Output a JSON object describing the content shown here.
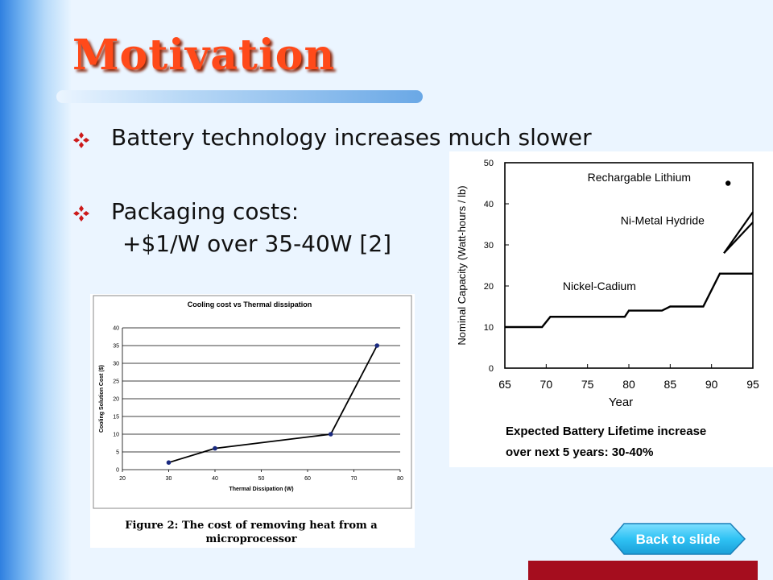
{
  "slide": {
    "title": "Motivation",
    "bullets": [
      {
        "text": "Battery technology increases much slower"
      },
      {
        "text": "Packaging costs:",
        "sub": "+$1/W over 35-40W [2]"
      }
    ],
    "back_button": {
      "label": "Back to slide"
    },
    "colors": {
      "title": "#ff4a1a",
      "bullet_icon": "#cc1a1a",
      "back_button": "#2fc2f4",
      "red_bar": "#a50d1e"
    }
  },
  "chart_data": [
    {
      "type": "line",
      "title": "Cooling cost vs Thermal dissipation",
      "xlabel": "Thermal Dissipation (W)",
      "ylabel": "Cooling Solution Cost ($)",
      "xlim": [
        20,
        80
      ],
      "ylim": [
        0,
        40
      ],
      "xticks": [
        "20",
        "30",
        "40",
        "50",
        "60",
        "70",
        "80"
      ],
      "yticks": [
        "0",
        "5",
        "10",
        "15",
        "20",
        "25",
        "30",
        "35",
        "40"
      ],
      "grid": true,
      "series": [
        {
          "x": [
            30,
            40,
            65,
            75
          ],
          "y": [
            2,
            6,
            10,
            35
          ]
        }
      ],
      "caption": "Figure 2: The cost of removing heat from a microprocessor"
    },
    {
      "type": "line",
      "xlabel": "Year",
      "ylabel": "Nominal Capacity (Watt-hours / lb)",
      "xlim": [
        65,
        95
      ],
      "ylim": [
        0,
        50
      ],
      "xticks": [
        "65",
        "70",
        "75",
        "80",
        "85",
        "90",
        "95"
      ],
      "yticks": [
        "0",
        "10",
        "20",
        "30",
        "40",
        "50"
      ],
      "grid": false,
      "series": [
        {
          "name": "Nickel-Cadium",
          "x": [
            65,
            69.5,
            70.5,
            79.5,
            80,
            84,
            85,
            89,
            91,
            95
          ],
          "y": [
            10,
            10,
            12.5,
            12.5,
            14,
            14,
            15,
            15,
            23,
            23
          ]
        },
        {
          "name": "Ni-Metal Hydride",
          "x": [
            91.5,
            95
          ],
          "y": [
            28,
            36
          ]
        },
        {
          "name": "Rechargable Lithium",
          "x": [
            92
          ],
          "y": [
            45
          ]
        }
      ],
      "caption": "Expected Battery Lifetime increase over next 5 years: 30-40%"
    }
  ]
}
